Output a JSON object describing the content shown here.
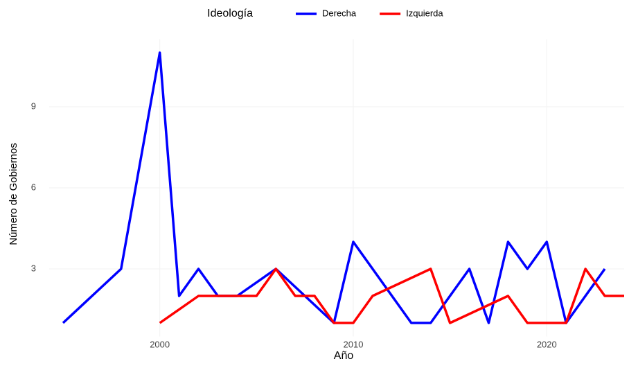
{
  "chart_data": {
    "type": "line",
    "x_label": "Año",
    "y_label": "Número de Gobiernos",
    "legend_title": "Ideología",
    "legend_position": "top",
    "series": [
      {
        "name": "Derecha",
        "color": "#0000ff",
        "x": [
          1995,
          1998,
          2000,
          2001,
          2002,
          2003,
          2004,
          2006,
          2009,
          2010,
          2013,
          2014,
          2016,
          2017,
          2018,
          2019,
          2020,
          2021,
          2023
        ],
        "values": [
          1,
          3,
          11,
          2,
          3,
          2,
          2,
          3,
          1,
          4,
          1,
          1,
          3,
          1,
          4,
          3,
          4,
          1,
          3
        ]
      },
      {
        "name": "Izquierda",
        "color": "#ff0000",
        "x": [
          2000,
          2002,
          2003,
          2004,
          2005,
          2006,
          2007,
          2008,
          2009,
          2010,
          2011,
          2014,
          2015,
          2018,
          2019,
          2020,
          2021,
          2022,
          2023,
          2024
        ],
        "values": [
          1,
          2,
          2,
          2,
          2,
          3,
          2,
          2,
          1,
          1,
          2,
          3,
          1,
          2,
          1,
          1,
          1,
          3,
          2,
          2
        ]
      }
    ],
    "xlim": [
      1995,
      2024
    ],
    "xticks": [
      2000,
      2010,
      2020
    ],
    "ylim": [
      0.5,
      11.5
    ],
    "yticks": [
      3,
      6,
      9
    ],
    "grid": true
  }
}
